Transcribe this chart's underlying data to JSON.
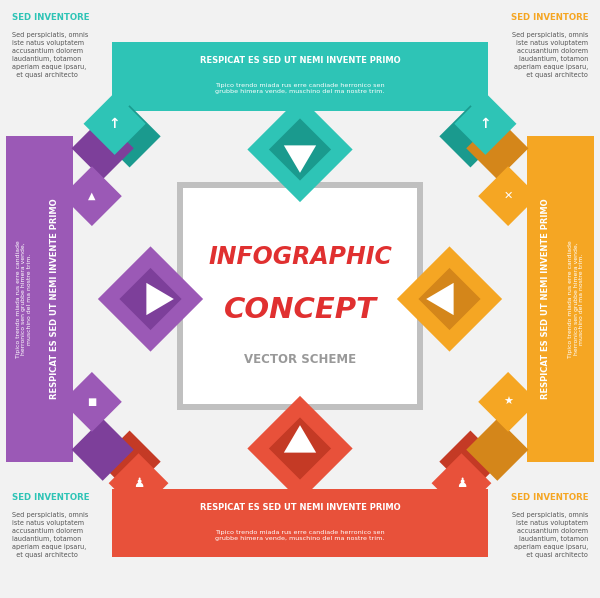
{
  "bg_color": "#f2f2f2",
  "center_box_color": "#ffffff",
  "center_box_border": "#bbbbbb",
  "title_line1": "INFOGRAPHIC",
  "title_line2": "CONCEPT",
  "subtitle": "VECTOR SCHEME",
  "title_color": "#e03030",
  "subtitle_color": "#999999",
  "colors": {
    "teal": "#2ec4b6",
    "teal_dark": "#1a9a8e",
    "orange": "#f5a623",
    "orange_dark": "#d4861a",
    "red": "#e8513a",
    "red_dark": "#c43a25",
    "purple": "#9b59b6",
    "purple_dark": "#7d3f9a"
  },
  "corner_title_teal": "#2ec4b6",
  "corner_title_orange": "#f5a623",
  "corner_body": "Sed perspiciatis, omnis\niste natus voluptatem\naccusantium dolorem\nlaudantium, totamon\naperiam eaque ipsaru,\n  et quasi architecto",
  "banner_top_title": "RESPICAT ES SED UT NEMI INVENTE PRIMO",
  "banner_top_body": "Tipico trendo miada rus erre candiade herronico sen\ngrubbe himera vende, muschino del ma nostre trim.",
  "banner_bot_title": "RESPICAT ES SED UT NEMI INVENTE PRIMO",
  "banner_bot_body": "Tipico trendo miada rus erre candiade herronico sen\ngrubbe himera vende, muschino del ma nostre trim.",
  "banner_left_title": "RESPICAT ES SED UT NEMI INVENTE PRIMO",
  "banner_left_body": "Tipico trendo miada rus erre candiade herronico sen grubbe himera vende, muschino del ma nostre trim.",
  "banner_right_title": "RESPICAT ES SED UT NEMI INVENTE PRIMO",
  "banner_right_body": "Tipico trendo miada rus erre candiade herronico sen grubbe himera vende, muschino del ma nostre trim."
}
